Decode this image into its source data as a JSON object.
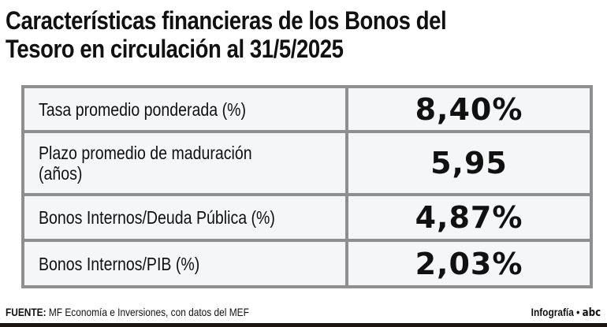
{
  "title": "Características financieras de los Bonos del Tesoro en circulación al 31/5/2025",
  "rows": [
    {
      "label": "Tasa promedio ponderada (%)",
      "value": "8,40%"
    },
    {
      "label": "Plazo promedio de maduración (años)",
      "value": "5,95"
    },
    {
      "label": "Bonos Internos/Deuda Pública (%)",
      "value": "4,87%"
    },
    {
      "label": "Bonos Internos/PIB (%)",
      "value": "2,03%"
    }
  ],
  "footer": {
    "source_label": "FUENTE:",
    "source_text": "MF Economía e Inversiones, con datos del MEF",
    "credit": "Infografía •",
    "logo": "abc"
  }
}
